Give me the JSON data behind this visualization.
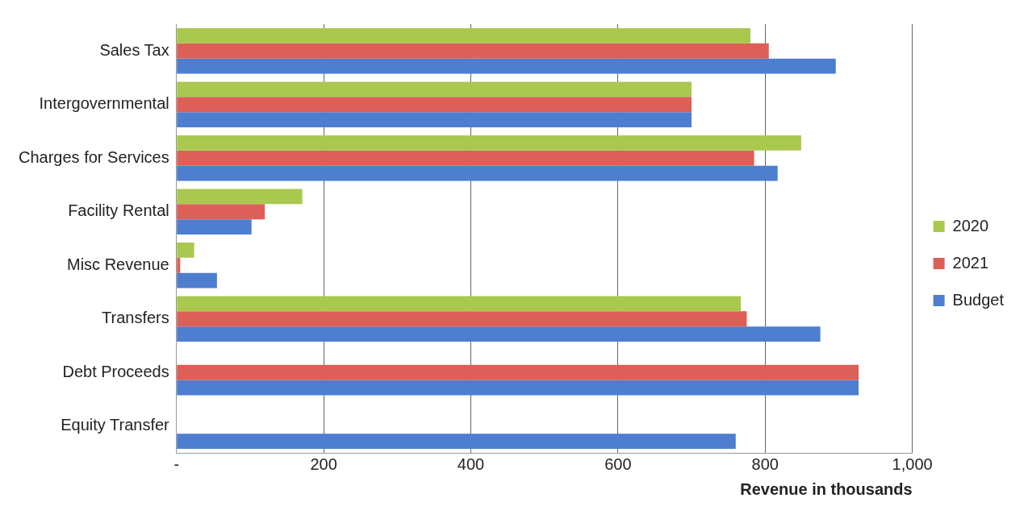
{
  "chart_data": {
    "type": "bar",
    "orientation": "horizontal",
    "xlabel": "Revenue in thousands",
    "categories": [
      "Sales Tax",
      "Intergovernmental",
      "Charges for Services",
      "Facility Rental",
      "Misc Revenue",
      "Transfers",
      "Debt Proceeds",
      "Equity Transfer"
    ],
    "series": [
      {
        "name": "2020",
        "color": "#a9c84e",
        "values": [
          780,
          700,
          849,
          171,
          24,
          767,
          null,
          null
        ]
      },
      {
        "name": "2021",
        "color": "#dc5f58",
        "values": [
          805,
          700,
          785,
          120,
          5,
          775,
          927,
          null
        ]
      },
      {
        "name": "Budget",
        "color": "#4d7ed0",
        "values": [
          896,
          700,
          817,
          102,
          55,
          875,
          927,
          760
        ]
      }
    ],
    "xlim": [
      0,
      1000
    ],
    "xticks": [
      {
        "value": 0,
        "label": "-"
      },
      200,
      400,
      600,
      800,
      {
        "value": 1000,
        "label": "1,000"
      }
    ],
    "grid": "x",
    "legend": "right"
  }
}
